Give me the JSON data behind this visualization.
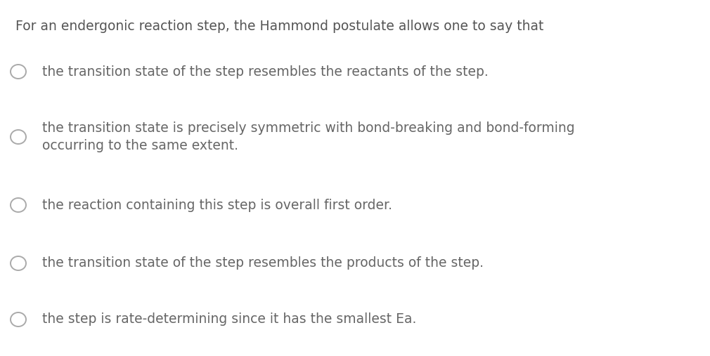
{
  "background_color": "#ffffff",
  "title_text": "For an endergonic reaction step, the Hammond postulate allows one to say that",
  "title_fontsize": 13.5,
  "title_color": "#555555",
  "options": [
    {
      "text": "the transition state of the step resembles the reactants of the step.",
      "multiline": false,
      "fontsize": 13.5,
      "color": "#666666"
    },
    {
      "text": "the transition state is precisely symmetric with bond-breaking and bond-forming\noccurring to the same extent.",
      "multiline": true,
      "fontsize": 13.5,
      "color": "#666666"
    },
    {
      "text": "the reaction containing this step is overall first order.",
      "multiline": false,
      "fontsize": 13.5,
      "color": "#666666"
    },
    {
      "text": "the transition state of the step resembles the products of the step.",
      "multiline": false,
      "fontsize": 13.5,
      "color": "#666666"
    },
    {
      "text": "the step is rate-determining since it has the smallest Ea.",
      "multiline": false,
      "fontsize": 13.5,
      "color": "#666666"
    }
  ],
  "circle_edge_color": "#aaaaaa",
  "circle_face_color": "#ffffff",
  "circle_linewidth": 1.4,
  "figwidth": 10.1,
  "figheight": 5.07,
  "dpi": 100
}
